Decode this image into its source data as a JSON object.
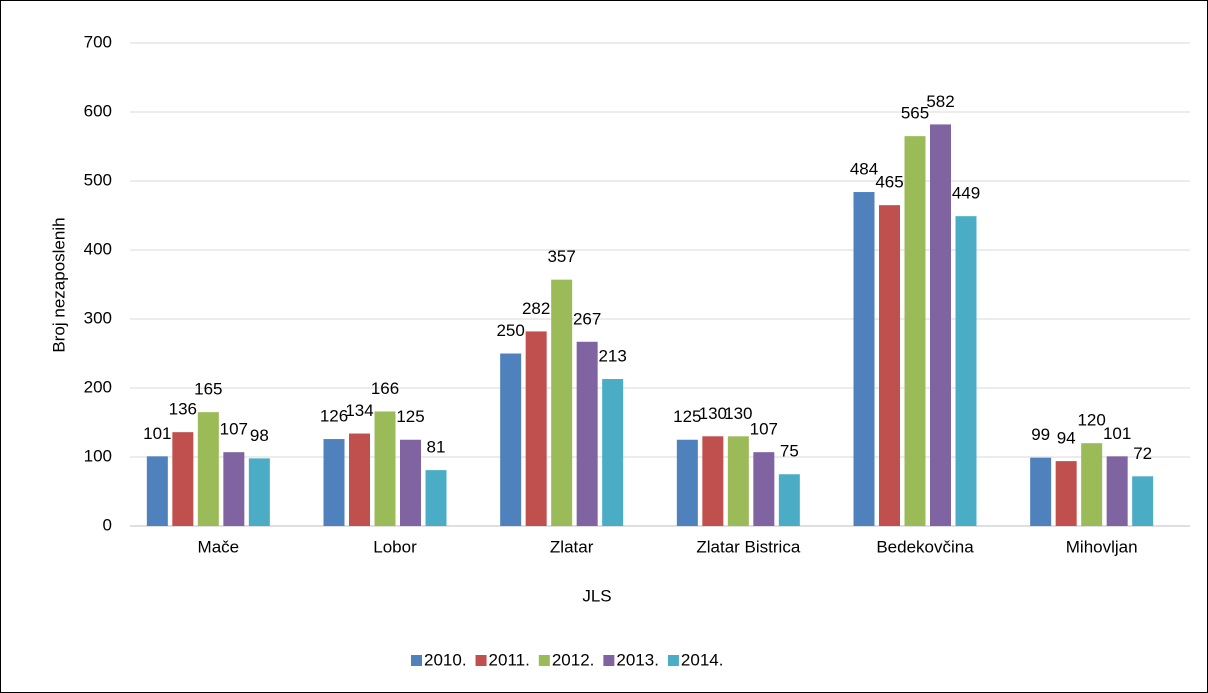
{
  "chart_data": {
    "type": "bar",
    "categories": [
      "Mače",
      "Lobor",
      "Zlatar",
      "Zlatar Bistrica",
      "Bedekovčina",
      "Mihovljan"
    ],
    "series": [
      {
        "name": "2010.",
        "color": "#4f81bd",
        "values": [
          101,
          126,
          250,
          125,
          484,
          99
        ]
      },
      {
        "name": "2011.",
        "color": "#c0504d",
        "values": [
          136,
          134,
          282,
          130,
          465,
          94
        ]
      },
      {
        "name": "2012.",
        "color": "#9bbb59",
        "values": [
          165,
          166,
          357,
          130,
          565,
          120
        ]
      },
      {
        "name": "2013.",
        "color": "#8064a2",
        "values": [
          107,
          125,
          267,
          107,
          582,
          101
        ]
      },
      {
        "name": "2014.",
        "color": "#4bacc6",
        "values": [
          98,
          81,
          213,
          75,
          449,
          72
        ]
      }
    ],
    "x_label": "JLS",
    "y_label": "Broj nezaposlenih",
    "ylim": [
      0,
      700
    ],
    "yticks": [
      0,
      100,
      200,
      300,
      400,
      500,
      600,
      700
    ],
    "grid": true,
    "legend": "bottom"
  }
}
